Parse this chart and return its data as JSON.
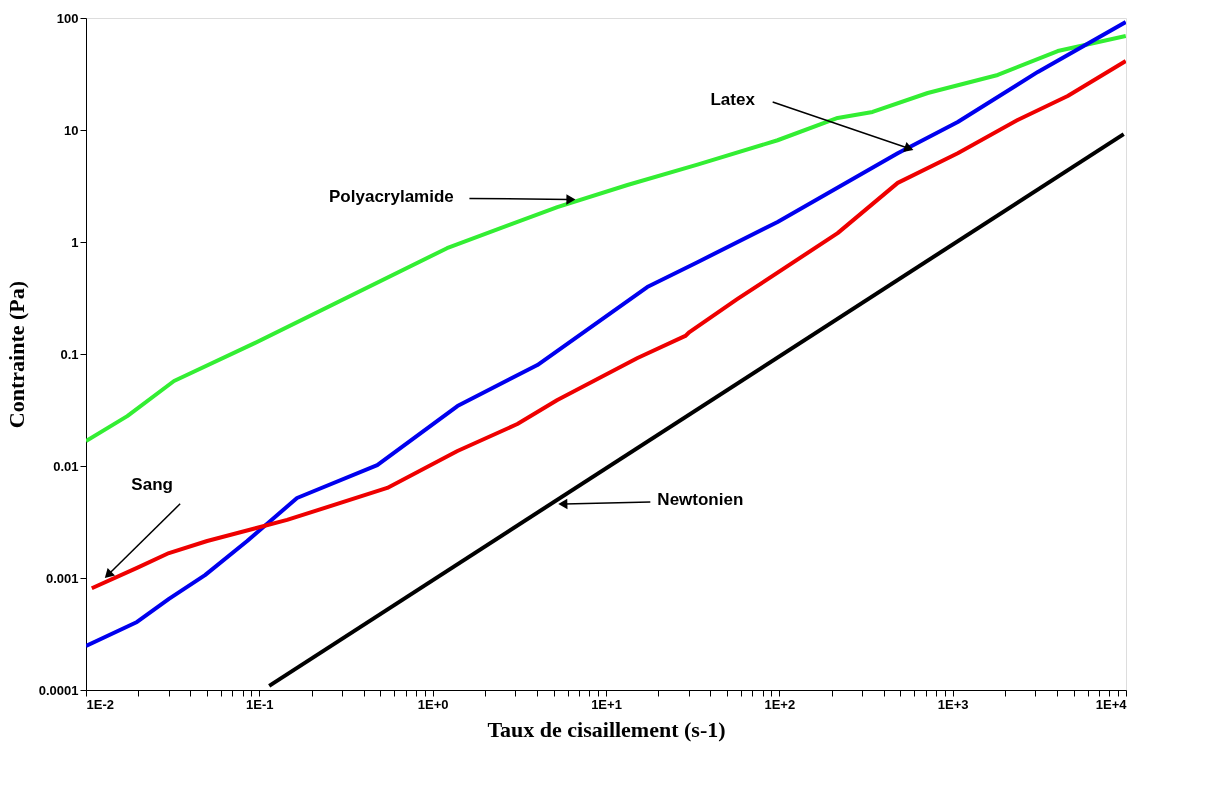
{
  "chart_data": {
    "type": "line",
    "xlabel": "Taux de cisaillement (s-1)",
    "ylabel": "Contrainte (Pa)",
    "log": "xy",
    "xlim": [
      0.01,
      10000
    ],
    "ylim": [
      0.0001,
      100
    ],
    "xticks": [
      {
        "value": 0.01,
        "label": "1E-2"
      },
      {
        "value": 0.02,
        "label": null
      },
      {
        "value": 0.03,
        "label": null
      },
      {
        "value": 0.04,
        "label": null
      },
      {
        "value": 0.05,
        "label": null
      },
      {
        "value": 0.06,
        "label": null
      },
      {
        "value": 0.07,
        "label": null
      },
      {
        "value": 0.08,
        "label": null
      },
      {
        "value": 0.09,
        "label": null
      },
      {
        "value": 0.1,
        "label": "1E-1"
      },
      {
        "value": 0.2,
        "label": null
      },
      {
        "value": 0.3,
        "label": null
      },
      {
        "value": 0.4,
        "label": null
      },
      {
        "value": 0.5,
        "label": null
      },
      {
        "value": 0.6,
        "label": null
      },
      {
        "value": 0.7,
        "label": null
      },
      {
        "value": 0.8,
        "label": null
      },
      {
        "value": 0.9,
        "label": null
      },
      {
        "value": 1,
        "label": "1E+0"
      },
      {
        "value": 2,
        "label": null
      },
      {
        "value": 3,
        "label": null
      },
      {
        "value": 4,
        "label": null
      },
      {
        "value": 5,
        "label": null
      },
      {
        "value": 6,
        "label": null
      },
      {
        "value": 7,
        "label": null
      },
      {
        "value": 8,
        "label": null
      },
      {
        "value": 9,
        "label": null
      },
      {
        "value": 10,
        "label": "1E+1"
      },
      {
        "value": 20,
        "label": null
      },
      {
        "value": 30,
        "label": null
      },
      {
        "value": 40,
        "label": null
      },
      {
        "value": 50,
        "label": null
      },
      {
        "value": 60,
        "label": null
      },
      {
        "value": 70,
        "label": null
      },
      {
        "value": 80,
        "label": null
      },
      {
        "value": 90,
        "label": null
      },
      {
        "value": 100,
        "label": "1E+2"
      },
      {
        "value": 200,
        "label": null
      },
      {
        "value": 300,
        "label": null
      },
      {
        "value": 400,
        "label": null
      },
      {
        "value": 500,
        "label": null
      },
      {
        "value": 600,
        "label": null
      },
      {
        "value": 700,
        "label": null
      },
      {
        "value": 800,
        "label": null
      },
      {
        "value": 900,
        "label": null
      },
      {
        "value": 1000,
        "label": "1E+3"
      },
      {
        "value": 2000,
        "label": null
      },
      {
        "value": 3000,
        "label": null
      },
      {
        "value": 4000,
        "label": null
      },
      {
        "value": 5000,
        "label": null
      },
      {
        "value": 6000,
        "label": null
      },
      {
        "value": 7000,
        "label": null
      },
      {
        "value": 8000,
        "label": null
      },
      {
        "value": 9000,
        "label": null
      },
      {
        "value": 10000,
        "label": "1E+4"
      }
    ],
    "yticks": [
      0.0001,
      0.001,
      0.01,
      0.1,
      1,
      10,
      100
    ],
    "marker": "none",
    "line_style": "solid",
    "series": [
      {
        "color": "#33ee33",
        "x": [
          0.01,
          0.0173,
          0.0322,
          0.092,
          1.21,
          5.24,
          13.3,
          33.7,
          97.7,
          217,
          345,
          718,
          1820,
          4040,
          9970
        ],
        "values": [
          0.0167,
          0.0279,
          0.0574,
          0.123,
          0.88,
          2.05,
          3.23,
          4.9,
          8.1,
          12.8,
          14.5,
          21.4,
          31,
          50.7,
          69
        ]
      },
      {
        "color": "#0000ee",
        "x": [
          0.01,
          0.0197,
          0.0301,
          0.0486,
          0.0851,
          0.165,
          0.479,
          1.39,
          4.02,
          17.3,
          33.7,
          97.7,
          482,
          1070,
          3100,
          9970
        ],
        "values": [
          0.000247,
          0.000405,
          0.00065,
          0.00106,
          0.00214,
          0.00518,
          0.0102,
          0.0343,
          0.0797,
          0.396,
          0.66,
          1.51,
          6.2,
          11.8,
          33,
          92
        ]
      },
      {
        "color": "#ee0000",
        "x": [
          0.0108,
          0.0197,
          0.0301,
          0.05,
          0.1446,
          0.547,
          1.39,
          3.08,
          5.24,
          15.2,
          28.7,
          30.3,
          57.4,
          217,
          482,
          1070,
          2370,
          4610,
          9970
        ],
        "values": [
          0.00081,
          0.00123,
          0.00167,
          0.00214,
          0.0033,
          0.00637,
          0.0136,
          0.0237,
          0.0388,
          0.092,
          0.145,
          0.157,
          0.31,
          1.2,
          3.37,
          6.2,
          12.3,
          20.1,
          41.3
        ]
      },
      {
        "color": "#000000",
        "x": [
          0.114,
          9700
        ],
        "values": [
          0.000109,
          9.2
        ]
      }
    ],
    "annotations": [
      {
        "text": "Polyacrylamide",
        "x": 6.15,
        "y": 2.4
      },
      {
        "text": "Latex",
        "x": 550,
        "y": 6.9
      },
      {
        "text": "Sang",
        "x": 0.0136,
        "y": 0.00109
      },
      {
        "text": "Newtonien",
        "x": 5.75,
        "y": 0.00458
      }
    ]
  }
}
